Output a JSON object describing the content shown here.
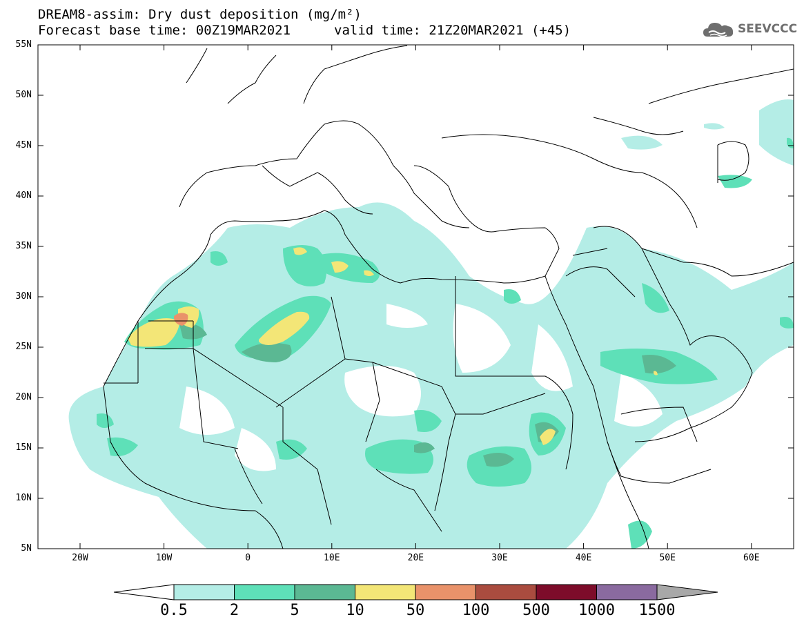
{
  "title_line1": "DREAM8-assim: Dry dust deposition (mg/m²)",
  "title_line2_left": "Forecast base time: 00Z19MAR2021",
  "title_line2_right": "valid time: 21Z20MAR2021 (+45)",
  "logo": {
    "text": "SEEVCCC",
    "icon": "cloud-logo-icon"
  },
  "map": {
    "lat_labels": [
      "55N",
      "50N",
      "45N",
      "40N",
      "35N",
      "30N",
      "25N",
      "20N",
      "15N",
      "10N",
      "5N"
    ],
    "lon_labels": [
      "20W",
      "10W",
      "0",
      "10E",
      "20E",
      "30E",
      "40E",
      "50E",
      "60E"
    ]
  },
  "colorbar": {
    "labels": [
      "0.5",
      "2",
      "5",
      "10",
      "50",
      "100",
      "500",
      "1000",
      "1500"
    ],
    "colors": [
      "#ffffff",
      "#b4ede6",
      "#5ee0b8",
      "#5bb893",
      "#f3e677",
      "#e9926a",
      "#aa4c3f",
      "#7d0c2a",
      "#8a6a9f",
      "#a8a8a8"
    ]
  }
}
